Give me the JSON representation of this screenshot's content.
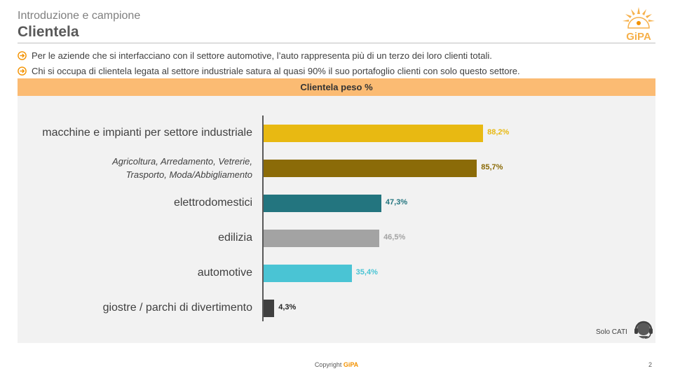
{
  "header": {
    "supertitle": "Introduzione e campione",
    "title": "Clientela",
    "logo_text": "GiPA"
  },
  "bullets": [
    "Per le aziende che si interfacciano con il settore automotive, l’auto rappresenta più di un terzo dei loro clienti totali.",
    "Chi si occupa di clientela legata al settore industriale satura al quasi 90% il suo portafoglio clienti con solo questo settore."
  ],
  "colors": {
    "accent": "#f39200",
    "panel_header": "#fbbb73",
    "panel_bg": "#f2f2f2"
  },
  "chart_data": {
    "type": "bar",
    "orientation": "horizontal",
    "title": "Clientela peso %",
    "categories": [
      "macchine e impianti per settore industriale",
      "Agricoltura, Arredamento, Vetrerie,\nTrasporto, Moda/Abbigliamento",
      "elettrodomestici",
      "edilizia",
      "automotive",
      "giostre / parchi di divertimento"
    ],
    "values": [
      88.2,
      85.7,
      47.3,
      46.5,
      35.4,
      4.3
    ],
    "value_labels": [
      "88,2%",
      "85,7%",
      "47,3%",
      "46,5%",
      "35,4%",
      "4,3%"
    ],
    "bar_colors": [
      "#e8b912",
      "#8b6b08",
      "#23757f",
      "#a3a3a3",
      "#4ac4d4",
      "#404040"
    ],
    "label_colors": [
      "#e8b912",
      "#8b6b08",
      "#23757f",
      "#a3a3a3",
      "#4ac4d4",
      "#262626"
    ],
    "xlim": [
      0,
      100
    ],
    "grid": false,
    "legend": "none"
  },
  "footer": {
    "note": "Solo CATI",
    "copyright_prefix": "Copyright ",
    "copyright_brand": "GiPA",
    "page_number": "2"
  }
}
